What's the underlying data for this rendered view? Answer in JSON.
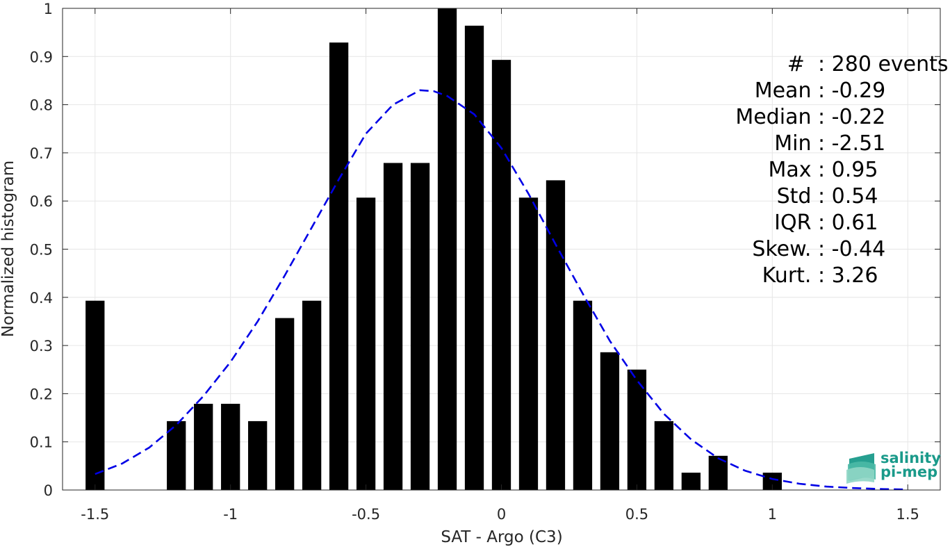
{
  "chart_data": {
    "type": "bar",
    "xlabel": "SAT - Argo (C3)",
    "ylabel": "Normalized histogram",
    "xlim": [
      -1.62,
      1.62
    ],
    "ylim": [
      0,
      1
    ],
    "xticks": [
      -1.5,
      -1,
      -0.5,
      0,
      0.5,
      1,
      1.5
    ],
    "xtick_labels": [
      "-1.5",
      "-1",
      "-0.5",
      "0",
      "0.5",
      "1",
      "1.5"
    ],
    "yticks": [
      0,
      0.1,
      0.2,
      0.3,
      0.4,
      0.5,
      0.6,
      0.7,
      0.8,
      0.9,
      1
    ],
    "ytick_labels": [
      "0",
      "0.1",
      "0.2",
      "0.3",
      "0.4",
      "0.5",
      "0.6",
      "0.7",
      "0.8",
      "0.9",
      "1"
    ],
    "grid": true,
    "bar_color": "#000000",
    "bar_width": 0.07,
    "bins": {
      "x": [
        -1.5,
        -1.2,
        -1.1,
        -1.0,
        -0.9,
        -0.8,
        -0.7,
        -0.6,
        -0.5,
        -0.4,
        -0.3,
        -0.2,
        -0.1,
        0.0,
        0.1,
        0.2,
        0.3,
        0.4,
        0.5,
        0.6,
        0.7,
        0.8,
        1.0
      ],
      "values": [
        0.393,
        0.143,
        0.179,
        0.179,
        0.143,
        0.357,
        0.393,
        0.929,
        0.607,
        0.679,
        0.679,
        1.0,
        0.964,
        0.893,
        0.607,
        0.643,
        0.393,
        0.286,
        0.25,
        0.143,
        0.036,
        0.071,
        0.036
      ]
    },
    "fit_curve": {
      "style": "dashed",
      "color": "#0000e6",
      "x": [
        -1.5,
        -1.4,
        -1.3,
        -1.2,
        -1.1,
        -1.0,
        -0.9,
        -0.8,
        -0.7,
        -0.6,
        -0.5,
        -0.4,
        -0.3,
        -0.25,
        -0.2,
        -0.1,
        0.0,
        0.1,
        0.2,
        0.3,
        0.4,
        0.5,
        0.6,
        0.7,
        0.8,
        0.9,
        1.0,
        1.1,
        1.2,
        1.3,
        1.4,
        1.5
      ],
      "y": [
        0.033,
        0.055,
        0.088,
        0.135,
        0.195,
        0.266,
        0.35,
        0.445,
        0.545,
        0.645,
        0.74,
        0.8,
        0.83,
        0.828,
        0.818,
        0.78,
        0.71,
        0.615,
        0.51,
        0.408,
        0.31,
        0.228,
        0.158,
        0.105,
        0.066,
        0.04,
        0.023,
        0.013,
        0.007,
        0.004,
        0.002,
        0.001
      ]
    },
    "stats": [
      {
        "label": "#  ",
        "value": ": 280 events"
      },
      {
        "label": "Mean ",
        "value": ": -0.29"
      },
      {
        "label": "Median ",
        "value": ": -0.22"
      },
      {
        "label": "Min ",
        "value": ": -2.51"
      },
      {
        "label": "Max ",
        "value": ": 0.95"
      },
      {
        "label": "Std ",
        "value": ": 0.54"
      },
      {
        "label": "IQR ",
        "value": ": 0.61"
      },
      {
        "label": "Skew. ",
        "value": ": -0.44"
      },
      {
        "label": "Kurt. ",
        "value": ": 3.26"
      }
    ]
  },
  "logo": {
    "line1": "salinity",
    "line2": "pi-mep",
    "color": "#1a9a8a"
  }
}
